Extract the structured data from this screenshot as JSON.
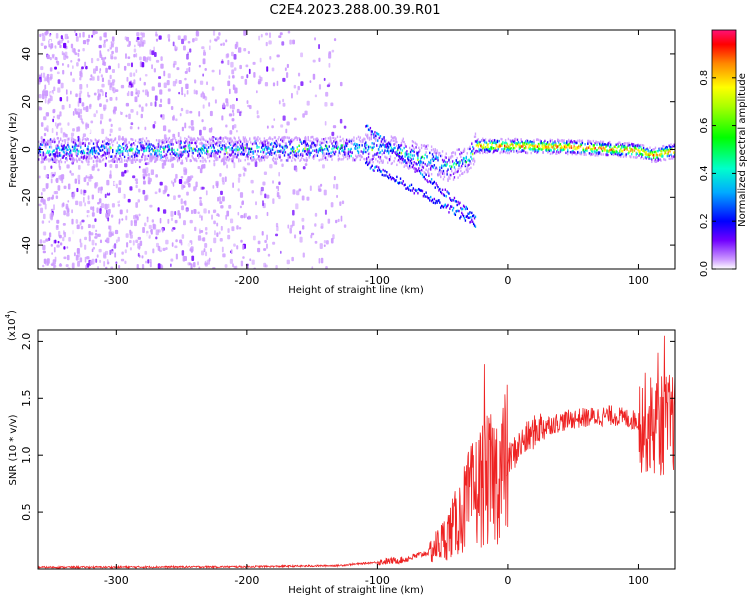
{
  "title": "C2E4.2023.288.00.39.R01",
  "chart_data": [
    {
      "type": "heatmap",
      "xlabel": "Height of straight line (km)",
      "ylabel": "Frequency (Hz)",
      "xlim": [
        -360,
        128
      ],
      "ylim": [
        -50,
        50
      ],
      "xticks": [
        -300,
        -200,
        -100,
        0,
        100
      ],
      "yticks": [
        -40,
        -20,
        0,
        20,
        40
      ],
      "colorbar": {
        "label": "Normalized spectral amplitude",
        "range": [
          0.0,
          1.0
        ],
        "ticks": [
          "0.0",
          "0.2",
          "0.4",
          "0.6",
          "0.8"
        ],
        "colors": [
          "#ffffff",
          "#cc99ff",
          "#7000ff",
          "#0000ff",
          "#00aaff",
          "#00ffcc",
          "#00ff00",
          "#aaff00",
          "#ffff00",
          "#ff8800",
          "#ff0000",
          "#ff1177"
        ]
      },
      "center_line": [
        {
          "x": -360,
          "y": 0
        },
        {
          "x": -100,
          "y": 1
        },
        {
          "x": -80,
          "y": -1
        },
        {
          "x": -60,
          "y": -4
        },
        {
          "x": -45,
          "y": -7
        },
        {
          "x": -30,
          "y": -3
        },
        {
          "x": -25,
          "y": 2
        },
        {
          "x": 0,
          "y": 2
        },
        {
          "x": 50,
          "y": 1.5
        },
        {
          "x": 100,
          "y": 0
        },
        {
          "x": 110,
          "y": -2
        },
        {
          "x": 128,
          "y": 0
        }
      ],
      "background_noise": {
        "x_range": [
          -360,
          -125
        ],
        "y_range": [
          -50,
          50
        ]
      }
    },
    {
      "type": "line",
      "xlabel": "Height of straight line (km)",
      "ylabel": "SNR (10 * v/v)",
      "multiplier": "(x10",
      "exponent": "4",
      "exponent_close": ")",
      "xlim": [
        -360,
        128
      ],
      "ylim": [
        0,
        21000
      ],
      "xticks": [
        -300,
        -200,
        -100,
        0,
        100
      ],
      "yticks": [
        5000,
        10000,
        15000,
        20000
      ],
      "ytick_labels": [
        "0.5",
        "1.0",
        "1.5",
        "2.0"
      ],
      "color": "#ee2222",
      "envelope": [
        {
          "x": -360,
          "y": 150
        },
        {
          "x": -200,
          "y": 200
        },
        {
          "x": -130,
          "y": 300
        },
        {
          "x": -100,
          "y": 600
        },
        {
          "x": -80,
          "y": 800
        },
        {
          "x": -60,
          "y": 1500
        },
        {
          "x": -50,
          "y": 2500
        },
        {
          "x": -40,
          "y": 4000
        },
        {
          "x": -30,
          "y": 6000
        },
        {
          "x": -20,
          "y": 7500
        },
        {
          "x": -10,
          "y": 8000
        },
        {
          "x": 0,
          "y": 9500
        },
        {
          "x": 10,
          "y": 11000
        },
        {
          "x": 25,
          "y": 12500
        },
        {
          "x": 50,
          "y": 13200
        },
        {
          "x": 80,
          "y": 13500
        },
        {
          "x": 100,
          "y": 13000
        },
        {
          "x": 115,
          "y": 12500
        },
        {
          "x": 128,
          "y": 13000
        }
      ],
      "peaks": [
        {
          "x": -18,
          "y": 18000
        },
        {
          "x": 120,
          "y": 20500
        },
        {
          "x": 115,
          "y": 19000
        }
      ]
    }
  ]
}
